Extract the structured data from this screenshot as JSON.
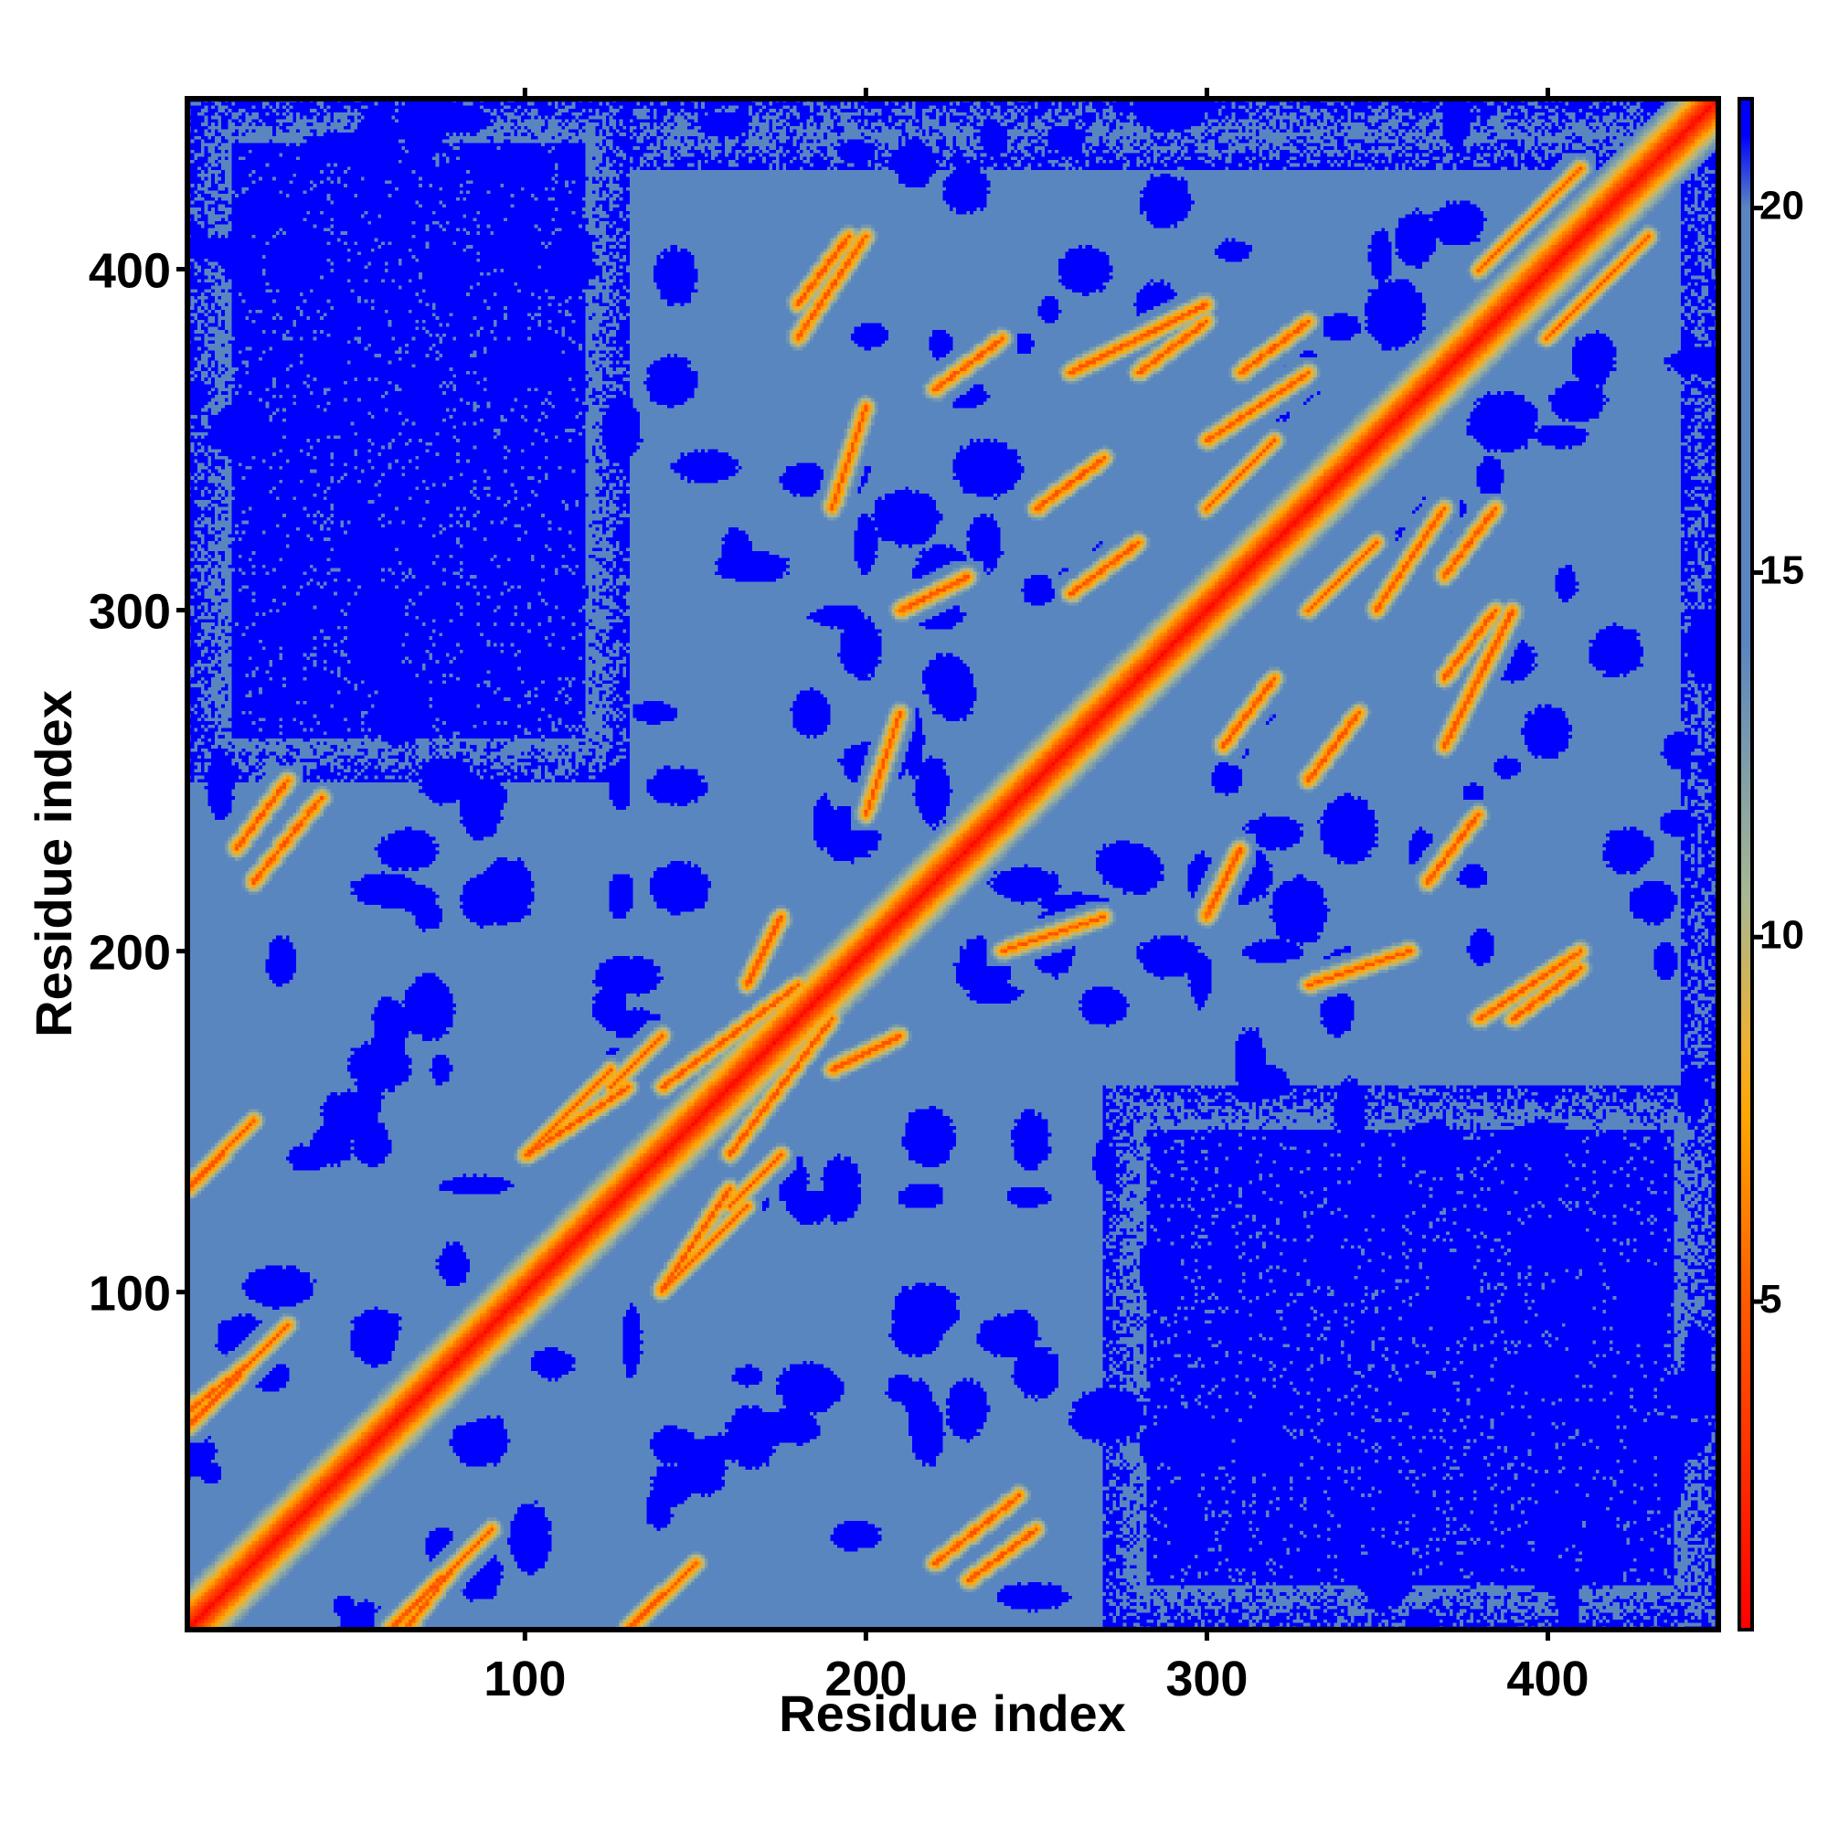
{
  "chart_data": {
    "type": "heatmap",
    "title": "",
    "xlabel": "Residue index",
    "ylabel": "Residue index",
    "n_residues": 450,
    "xlim": [
      1,
      450
    ],
    "ylim": [
      1,
      450
    ],
    "x_ticks": [
      100,
      200,
      300,
      400
    ],
    "y_ticks": [
      100,
      200,
      300,
      400
    ],
    "x_tick_labels": [
      "100",
      "200",
      "300",
      "400"
    ],
    "y_tick_labels": [
      "100",
      "200",
      "300",
      "400"
    ],
    "colorbar": {
      "range": [
        0.5,
        21.5
      ],
      "ticks": [
        5,
        10,
        15,
        20
      ],
      "tick_labels": [
        "5",
        "10",
        "15",
        "20"
      ],
      "stops": [
        {
          "value": 0.5,
          "color": "#ff0000"
        },
        {
          "value": 5.0,
          "color": "#ff5a00"
        },
        {
          "value": 7.5,
          "color": "#ffa500"
        },
        {
          "value": 8.5,
          "color": "#f0b030"
        },
        {
          "value": 10.5,
          "color": "#a8b890"
        },
        {
          "value": 14.0,
          "color": "#5a86c0"
        },
        {
          "value": 20.0,
          "color": "#5a86c0"
        },
        {
          "value": 21.0,
          "color": "#0000ff"
        },
        {
          "value": 21.5,
          "color": "#0000ff"
        }
      ]
    },
    "description_values": {
      "diagonal_distance": 1,
      "background_far_distance": 21,
      "mid_distance": 17,
      "contact_distance": 5
    },
    "contact_segments": [
      {
        "x": [
          130,
          150
        ],
        "y": [
          1,
          20
        ]
      },
      {
        "x": [
          100,
          130
        ],
        "y": [
          140,
          160
        ]
      },
      {
        "x": [
          180,
          140
        ],
        "y": [
          190,
          160
        ]
      },
      {
        "x": [
          160,
          175
        ],
        "y": [
          125,
          140
        ]
      },
      {
        "x": [
          190,
          210
        ],
        "y": [
          165,
          175
        ]
      },
      {
        "x": [
          140,
          165
        ],
        "y": [
          100,
          125
        ]
      },
      {
        "x": [
          260,
          300
        ],
        "y": [
          370,
          390
        ]
      },
      {
        "x": [
          310,
          330
        ],
        "y": [
          370,
          385
        ]
      },
      {
        "x": [
          300,
          320
        ],
        "y": [
          330,
          350
        ]
      },
      {
        "x": [
          350,
          370
        ],
        "y": [
          300,
          330
        ]
      },
      {
        "x": [
          370,
          385
        ],
        "y": [
          280,
          300
        ]
      },
      {
        "x": [
          260,
          280
        ],
        "y": [
          305,
          320
        ]
      },
      {
        "x": [
          20,
          40
        ],
        "y": [
          220,
          245
        ]
      },
      {
        "x": [
          1,
          20
        ],
        "y": [
          130,
          150
        ]
      },
      {
        "x": [
          1,
          20
        ],
        "y": [
          65,
          80
        ]
      },
      {
        "x": [
          60,
          90
        ],
        "y": [
          1,
          30
        ]
      },
      {
        "x": [
          230,
          250
        ],
        "y": [
          15,
          30
        ]
      },
      {
        "x": [
          390,
          410
        ],
        "y": [
          180,
          195
        ]
      },
      {
        "x": [
          240,
          270
        ],
        "y": [
          200,
          210
        ]
      },
      {
        "x": [
          210,
          230
        ],
        "y": [
          300,
          310
        ]
      },
      {
        "x": [
          330,
          360
        ],
        "y": [
          190,
          200
        ]
      },
      {
        "x": [
          365,
          380
        ],
        "y": [
          220,
          240
        ]
      },
      {
        "x": [
          330,
          345
        ],
        "y": [
          250,
          270
        ]
      },
      {
        "x": [
          180,
          200
        ],
        "y": [
          380,
          410
        ]
      },
      {
        "x": [
          380,
          410
        ],
        "y": [
          400,
          430
        ]
      }
    ],
    "blue_regions": [
      {
        "x": [
          1,
          130
        ],
        "y": [
          250,
          450
        ]
      },
      {
        "x": [
          270,
          450
        ],
        "y": [
          1,
          160
        ]
      },
      {
        "x": [
          130,
          450
        ],
        "y": [
          430,
          450
        ]
      },
      {
        "x": [
          440,
          450
        ],
        "y": [
          160,
          450
        ]
      }
    ]
  }
}
